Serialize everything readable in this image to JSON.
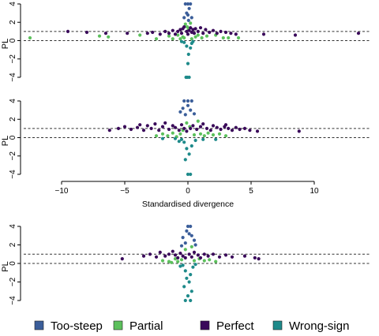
{
  "chart_data": [
    {
      "type": "scatter",
      "ylabel": "PL",
      "xlabel": "",
      "xlim": [
        -13,
        14.5
      ],
      "ylim": [
        -4,
        4
      ],
      "yticks": [
        -4,
        -2,
        0,
        2,
        4
      ],
      "reference_lines_y": [
        0,
        1
      ],
      "series": [
        {
          "name": "Too-steep",
          "color": "#3b5e9a",
          "points": [
            [
              0.0,
              4.0
            ],
            [
              -0.2,
              4.0
            ],
            [
              0.2,
              4.0
            ],
            [
              0.1,
              3.5
            ],
            [
              -0.1,
              3.0
            ],
            [
              0.0,
              2.8
            ],
            [
              0.3,
              2.5
            ],
            [
              -0.3,
              2.5
            ],
            [
              0.05,
              2.2
            ]
          ]
        },
        {
          "name": "Partial",
          "color": "#5cc05c",
          "points": [
            [
              -12.5,
              0.3
            ],
            [
              -7,
              0.5
            ],
            [
              -6.3,
              0.4
            ],
            [
              -3.8,
              0.6
            ],
            [
              -2.5,
              0.2
            ],
            [
              -1.5,
              0.5
            ],
            [
              -1.2,
              0.2
            ],
            [
              -0.8,
              0.6
            ],
            [
              -0.6,
              0.2
            ],
            [
              -0.4,
              0.4
            ],
            [
              -0.2,
              1.8
            ],
            [
              0.2,
              1.9
            ],
            [
              -0.3,
              0.3
            ],
            [
              0.3,
              0.2
            ],
            [
              0.6,
              0.4
            ],
            [
              0.8,
              0.6
            ],
            [
              1.1,
              0.3
            ],
            [
              1.5,
              0.5
            ],
            [
              2.2,
              0.6
            ],
            [
              2.8,
              0.3
            ],
            [
              3.2,
              0.3
            ],
            [
              4.0,
              0.3
            ],
            [
              -0.05,
              1.5
            ],
            [
              0.05,
              1.2
            ]
          ]
        },
        {
          "name": "Perfect",
          "color": "#3a0a5a",
          "points": [
            [
              -8,
              0.9
            ],
            [
              -6.5,
              0.8
            ],
            [
              -4.8,
              0.8
            ],
            [
              -3.2,
              0.8
            ],
            [
              -2.8,
              0.9
            ],
            [
              -2.2,
              0.7
            ],
            [
              -1.8,
              1.0
            ],
            [
              -1.5,
              0.8
            ],
            [
              -1.2,
              1.1
            ],
            [
              -1.0,
              0.7
            ],
            [
              -0.8,
              1.0
            ],
            [
              -0.6,
              1.2
            ],
            [
              -0.5,
              0.8
            ],
            [
              -0.4,
              1.3
            ],
            [
              -0.3,
              1.5
            ],
            [
              -0.1,
              1.0
            ],
            [
              0.0,
              0.7
            ],
            [
              0.1,
              1.1
            ],
            [
              0.2,
              1.4
            ],
            [
              0.3,
              0.9
            ],
            [
              0.4,
              1.2
            ],
            [
              0.5,
              0.8
            ],
            [
              0.6,
              1.3
            ],
            [
              0.8,
              1.0
            ],
            [
              1.0,
              1.4
            ],
            [
              1.2,
              0.8
            ],
            [
              1.4,
              1.2
            ],
            [
              1.7,
              0.9
            ],
            [
              2.0,
              1.1
            ],
            [
              2.3,
              0.8
            ],
            [
              2.6,
              1.0
            ],
            [
              3.0,
              0.9
            ],
            [
              3.4,
              0.8
            ],
            [
              3.8,
              0.7
            ],
            [
              6.0,
              0.7
            ],
            [
              8.5,
              0.6
            ],
            [
              13.5,
              0.8
            ],
            [
              -9.5,
              1.0
            ]
          ]
        },
        {
          "name": "Wrong-sign",
          "color": "#1e8a8a",
          "points": [
            [
              -0.3,
              -0.2
            ],
            [
              0.3,
              -0.3
            ],
            [
              -0.1,
              -0.6
            ],
            [
              0.2,
              -0.8
            ],
            [
              0.05,
              -1.5
            ],
            [
              0.0,
              -2.5
            ],
            [
              -0.05,
              -4.0
            ],
            [
              0.1,
              -4.0
            ],
            [
              -0.15,
              -4.0
            ],
            [
              0.4,
              -0.1
            ],
            [
              -0.5,
              -0.1
            ]
          ]
        }
      ]
    },
    {
      "type": "scatter",
      "ylabel": "PL",
      "xlabel": "Standardised divergence",
      "xlim": [
        -13,
        14.5
      ],
      "ylim": [
        -4,
        4
      ],
      "xticks": [
        -10,
        -5,
        0,
        5,
        10
      ],
      "yticks": [
        -4,
        -2,
        0,
        2,
        4
      ],
      "reference_lines_y": [
        0,
        1
      ],
      "series": [
        {
          "name": "Too-steep",
          "color": "#3b5e9a",
          "points": [
            [
              -0.3,
              4.0
            ],
            [
              0.0,
              4.0
            ],
            [
              0.3,
              4.0
            ],
            [
              -0.4,
              3.2
            ],
            [
              0.2,
              3.0
            ],
            [
              -0.6,
              2.8
            ],
            [
              0.5,
              2.6
            ],
            [
              -0.2,
              2.5
            ],
            [
              0.0,
              3.5
            ]
          ]
        },
        {
          "name": "Partial",
          "color": "#5cc05c",
          "points": [
            [
              -2.5,
              0.2
            ],
            [
              -2.0,
              0.4
            ],
            [
              -1.6,
              0.2
            ],
            [
              -1.2,
              0.5
            ],
            [
              -0.9,
              0.1
            ],
            [
              -0.6,
              0.4
            ],
            [
              -0.4,
              0.8
            ],
            [
              0.5,
              0.3
            ],
            [
              0.8,
              1.8
            ],
            [
              1.0,
              0.4
            ],
            [
              1.3,
              0.2
            ],
            [
              1.6,
              0.5
            ],
            [
              2.0,
              0.3
            ],
            [
              2.5,
              0.4
            ],
            [
              3.0,
              0.2
            ],
            [
              -0.1,
              1.6
            ],
            [
              0.15,
              1.2
            ]
          ]
        },
        {
          "name": "Perfect",
          "color": "#3a0a5a",
          "points": [
            [
              -6.2,
              0.8
            ],
            [
              -5.5,
              1.0
            ],
            [
              -5.0,
              1.2
            ],
            [
              -4.5,
              0.9
            ],
            [
              -4.0,
              1.1
            ],
            [
              -3.5,
              0.8
            ],
            [
              -3.2,
              1.3
            ],
            [
              -2.9,
              1.0
            ],
            [
              -2.6,
              1.5
            ],
            [
              -2.3,
              0.8
            ],
            [
              -2.0,
              1.2
            ],
            [
              -1.8,
              1.6
            ],
            [
              -1.5,
              0.9
            ],
            [
              -1.2,
              1.3
            ],
            [
              -1.0,
              1.1
            ],
            [
              -0.7,
              0.8
            ],
            [
              -0.5,
              1.4
            ],
            [
              -0.3,
              1.0
            ],
            [
              -0.1,
              0.7
            ],
            [
              0.2,
              1.0
            ],
            [
              0.4,
              1.3
            ],
            [
              0.7,
              0.9
            ],
            [
              1.0,
              1.2
            ],
            [
              1.2,
              1.5
            ],
            [
              1.5,
              1.0
            ],
            [
              1.8,
              0.8
            ],
            [
              2.0,
              1.3
            ],
            [
              2.3,
              1.1
            ],
            [
              2.6,
              0.9
            ],
            [
              2.9,
              1.2
            ],
            [
              3.2,
              1.0
            ],
            [
              3.5,
              0.8
            ],
            [
              3.8,
              1.1
            ],
            [
              4.1,
              0.9
            ],
            [
              4.5,
              1.0
            ],
            [
              4.9,
              0.8
            ],
            [
              5.5,
              0.7
            ],
            [
              8.8,
              0.7
            ],
            [
              -3.8,
              1.4
            ],
            [
              3.0,
              1.4
            ]
          ]
        },
        {
          "name": "Wrong-sign",
          "color": "#1e8a8a",
          "points": [
            [
              -0.5,
              -0.2
            ],
            [
              0.6,
              -0.3
            ],
            [
              -0.3,
              -0.5
            ],
            [
              0.3,
              -0.9
            ],
            [
              -0.1,
              -1.2
            ],
            [
              0.1,
              -1.8
            ],
            [
              -0.2,
              -2.4
            ],
            [
              0.0,
              -4.0
            ],
            [
              0.2,
              -4.0
            ],
            [
              1.2,
              -0.2
            ],
            [
              -1.0,
              -0.1
            ],
            [
              -2.0,
              -0.1
            ],
            [
              2.2,
              -0.2
            ],
            [
              -0.7,
              -0.4
            ]
          ]
        }
      ]
    },
    {
      "type": "scatter",
      "ylabel": "PL",
      "xlabel": "",
      "xlim": [
        -13,
        14.5
      ],
      "ylim": [
        -4,
        4
      ],
      "yticks": [
        -4,
        -2,
        0,
        2,
        4
      ],
      "reference_lines_y": [
        0,
        1
      ],
      "series": [
        {
          "name": "Too-steep",
          "color": "#3b5e9a",
          "points": [
            [
              0.0,
              4.0
            ],
            [
              0.2,
              4.0
            ],
            [
              -0.1,
              3.5
            ],
            [
              0.3,
              3.0
            ],
            [
              -0.4,
              2.8
            ],
            [
              0.5,
              2.5
            ],
            [
              -0.2,
              2.2
            ],
            [
              0.6,
              2.0
            ],
            [
              -0.5,
              1.9
            ],
            [
              0.1,
              3.2
            ]
          ]
        },
        {
          "name": "Partial",
          "color": "#5cc05c",
          "points": [
            [
              -2.0,
              0.3
            ],
            [
              -1.5,
              0.2
            ],
            [
              -1.0,
              0.5
            ],
            [
              -0.8,
              0.2
            ],
            [
              -0.5,
              0.4
            ],
            [
              -0.2,
              1.5
            ],
            [
              0.3,
              1.8
            ],
            [
              0.5,
              0.3
            ],
            [
              0.9,
              0.5
            ],
            [
              1.3,
              0.3
            ],
            [
              1.7,
              0.4
            ],
            [
              2.2,
              0.2
            ],
            [
              -1.3,
              0.1
            ]
          ]
        },
        {
          "name": "Perfect",
          "color": "#3a0a5a",
          "points": [
            [
              -5.2,
              0.5
            ],
            [
              -3.5,
              0.8
            ],
            [
              -3.0,
              1.0
            ],
            [
              -2.5,
              0.7
            ],
            [
              -2.2,
              1.2
            ],
            [
              -1.8,
              0.8
            ],
            [
              -1.5,
              1.0
            ],
            [
              -1.2,
              1.3
            ],
            [
              -1.0,
              0.9
            ],
            [
              -0.8,
              0.6
            ],
            [
              -0.6,
              1.1
            ],
            [
              -0.4,
              0.8
            ],
            [
              -0.2,
              0.6
            ],
            [
              0.1,
              1.0
            ],
            [
              0.3,
              0.7
            ],
            [
              0.5,
              1.2
            ],
            [
              0.8,
              0.9
            ],
            [
              1.0,
              0.6
            ],
            [
              1.3,
              1.0
            ],
            [
              1.6,
              0.8
            ],
            [
              2.0,
              1.0
            ],
            [
              2.5,
              0.7
            ],
            [
              3.0,
              0.9
            ],
            [
              3.5,
              0.7
            ],
            [
              4.5,
              0.8
            ],
            [
              5.3,
              0.6
            ],
            [
              5.6,
              0.5
            ]
          ]
        },
        {
          "name": "Wrong-sign",
          "color": "#1e8a8a",
          "points": [
            [
              -0.4,
              -0.2
            ],
            [
              0.4,
              -0.4
            ],
            [
              -0.2,
              -0.8
            ],
            [
              0.2,
              -1.2
            ],
            [
              -0.1,
              -1.6
            ],
            [
              0.1,
              -2.0
            ],
            [
              -0.3,
              -2.5
            ],
            [
              0.3,
              -3.0
            ],
            [
              0.0,
              -3.5
            ],
            [
              -0.2,
              -4.0
            ],
            [
              0.2,
              -4.0
            ],
            [
              0.6,
              -0.1
            ],
            [
              -0.6,
              -0.3
            ]
          ]
        }
      ]
    }
  ],
  "legend": [
    {
      "label": "Too-steep",
      "color": "#3b5e9a"
    },
    {
      "label": "Partial",
      "color": "#5cc05c"
    },
    {
      "label": "Perfect",
      "color": "#3a0a5a"
    },
    {
      "label": "Wrong-sign",
      "color": "#1e8a8a"
    }
  ]
}
